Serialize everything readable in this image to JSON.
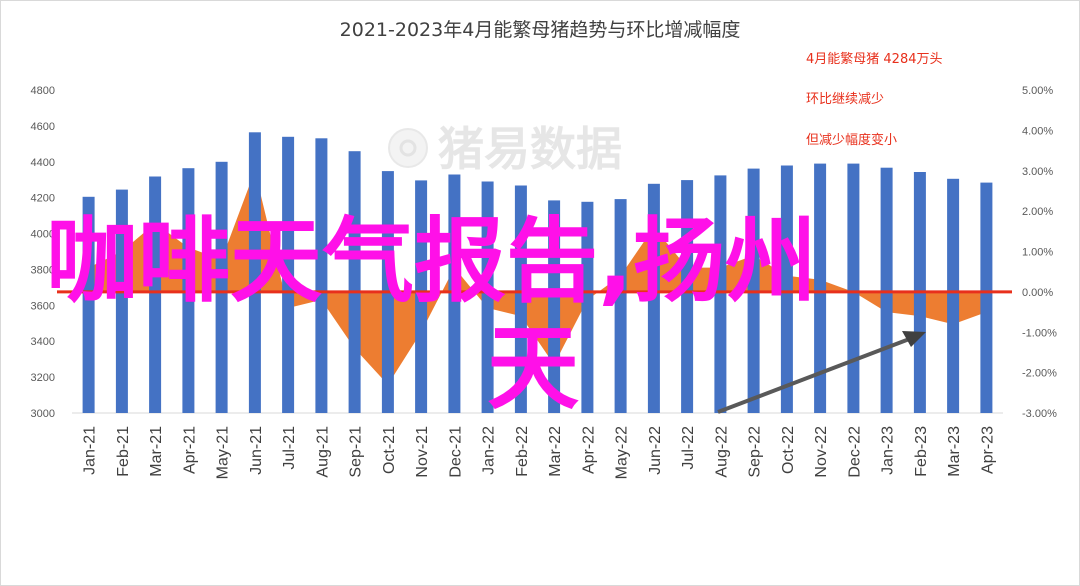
{
  "chart_data": {
    "type": "bar",
    "title": "2021-2023年4月能繁母猪趋势与环比增减幅度",
    "categories": [
      "Jan-21",
      "Feb-21",
      "Mar-21",
      "Apr-21",
      "May-21",
      "Jun-21",
      "Jul-21",
      "Aug-21",
      "Sep-21",
      "Oct-21",
      "Nov-21",
      "Dec-21",
      "Jan-22",
      "Feb-22",
      "Mar-22",
      "Apr-22",
      "May-22",
      "Jun-22",
      "Jul-22",
      "Aug-22",
      "Sep-22",
      "Oct-22",
      "Nov-22",
      "Dec-22",
      "Jan-23",
      "Feb-23",
      "Mar-23",
      "Apr-23"
    ],
    "series": [
      {
        "type": "bar",
        "axis": "left",
        "color": "#4472c4",
        "values": [
          4205,
          4245,
          4318,
          4364,
          4400,
          4564,
          4539,
          4531,
          4459,
          4348,
          4296,
          4329,
          4290,
          4268,
          4185,
          4177,
          4192,
          4277,
          4298,
          4324,
          4362,
          4379,
          4390,
          4390,
          4367,
          4343,
          4305,
          4284
        ]
      },
      {
        "type": "area",
        "axis": "right",
        "color": "#ed7d31",
        "values": [
          0.6,
          1.0,
          1.7,
          1.1,
          0.8,
          3.0,
          -0.4,
          -0.2,
          -1.4,
          -2.3,
          -1.0,
          0.6,
          -0.4,
          -0.6,
          -1.8,
          -0.2,
          0.4,
          1.6,
          0.6,
          0.6,
          0.9,
          0.4,
          0.3,
          0.0,
          -0.5,
          -0.6,
          -0.8,
          -0.5
        ]
      }
    ],
    "ylim": [
      3000,
      4800
    ],
    "yticks": [
      "3000",
      "3200",
      "3400",
      "3600",
      "3800",
      "4000",
      "4200",
      "4400",
      "4600",
      "4800"
    ],
    "y2lim": [
      -3,
      5
    ],
    "y2ticks": [
      "-3.00%",
      "-2.00%",
      "-1.00%",
      "0.00%",
      "1.00%",
      "2.00%",
      "3.00%",
      "4.00%",
      "5.00%"
    ],
    "zero_line_color": "#e8301c",
    "annotations": [
      "4月能繁母猪 4284万头",
      "环比继续减少",
      "但减少幅度变小"
    ],
    "watermark": "猪易数据",
    "overlay_text": [
      "咖啡天气报告,扬州",
      "天"
    ]
  }
}
